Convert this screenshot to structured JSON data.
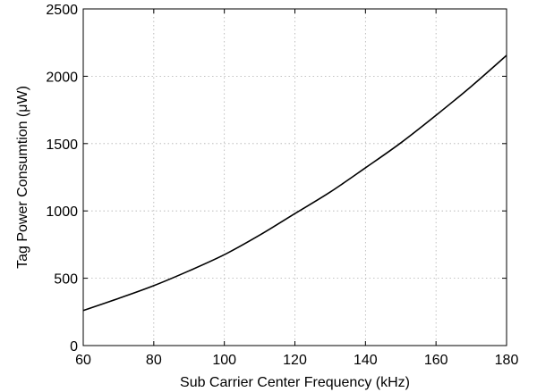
{
  "chart_data": {
    "type": "line",
    "title": "",
    "xlabel": "Sub Carrier Center Frequency (kHz)",
    "ylabel": "Tag Power Consumtion (μW)",
    "xlim": [
      60,
      180
    ],
    "ylim": [
      0,
      2500
    ],
    "xticks": [
      60,
      80,
      100,
      120,
      140,
      160,
      180
    ],
    "yticks": [
      0,
      500,
      1000,
      1500,
      2000,
      2500
    ],
    "grid": true,
    "colors": {
      "line": "#000000",
      "grid": "#b0b0b0",
      "background": "#ffffff"
    },
    "series": [
      {
        "x": [
          60,
          70,
          80,
          90,
          100,
          110,
          120,
          130,
          140,
          150,
          160,
          170,
          180
        ],
        "y": [
          260,
          350,
          445,
          555,
          675,
          820,
          980,
          1140,
          1320,
          1505,
          1710,
          1925,
          2155
        ]
      }
    ]
  }
}
